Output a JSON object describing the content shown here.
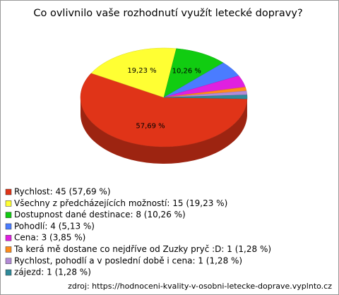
{
  "chart_data": {
    "type": "pie",
    "title": "Co ovlivnilo vaše rozhodnutí využít letecké dopravy?",
    "categories": [
      "Rychlost: 45 (57,69 %)",
      "Všechny z předcházejících možností: 15 (19,23 %)",
      "Dostupnost dané destinace: 8 (10,26 %)",
      "Pohodlí: 4 (5,13 %)",
      "Cena: 3 (3,85 %)",
      "Ta kerá mě dostane co nejdříve od Zuzky pryč :D: 1 (1,28 %)",
      "Rychlost, pohodlí a v poslední době i cena: 1 (1,28 %)",
      "zájezd: 1 (1,28 %)"
    ],
    "values": [
      57.69,
      19.23,
      10.26,
      5.13,
      3.85,
      1.28,
      1.28,
      1.28
    ],
    "value_labels": [
      "57,69 %",
      "19,23 %",
      "10,26 %",
      null,
      null,
      null,
      null,
      null
    ],
    "colors": [
      "#e03418",
      "#ffff33",
      "#11cc11",
      "#4a7cff",
      "#e020e0",
      "#ff8c1a",
      "#b38ad6",
      "#2f8a9a"
    ],
    "source": "zdroj: https://hodnoceni-kvality-v-osobni-letecke-doprave.vyplnto.cz"
  }
}
